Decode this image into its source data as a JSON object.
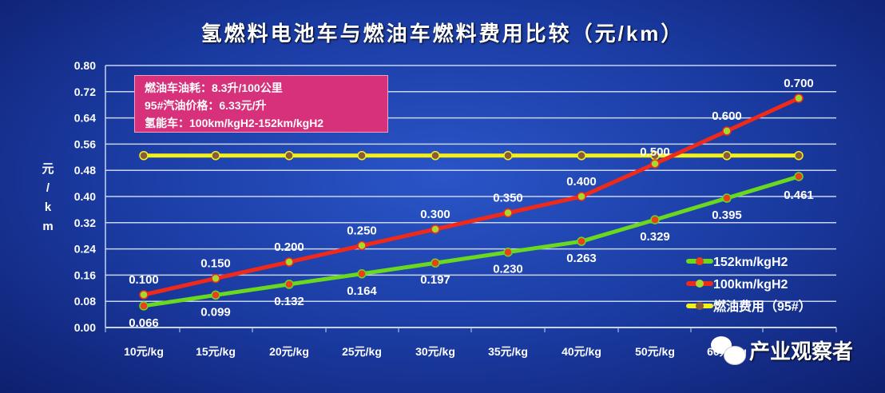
{
  "chart_data": {
    "type": "line",
    "title": "氢燃料电池车与燃油车燃料费用比较（元/km）",
    "ylabel": "元/km",
    "xlabel": "",
    "ylim": [
      0,
      0.8
    ],
    "yticks": [
      "0.00",
      "0.08",
      "0.16",
      "0.24",
      "0.32",
      "0.40",
      "0.48",
      "0.56",
      "0.64",
      "0.72",
      "0.80"
    ],
    "categories": [
      "10元/kg",
      "15元/kg",
      "20元/kg",
      "25元/kg",
      "30元/kg",
      "35元/kg",
      "40元/kg",
      "50元/kg",
      "60元/kg",
      ""
    ],
    "series": [
      {
        "name": "152km/kgH2",
        "color": "#6ad81e",
        "marker": "#e8401a",
        "values": [
          0.066,
          0.099,
          0.132,
          0.164,
          0.197,
          0.23,
          0.263,
          0.329,
          0.395,
          0.461
        ],
        "labels": [
          "0.066",
          "0.099",
          "0.132",
          "0.164",
          "0.197",
          "0.230",
          "0.263",
          "0.329",
          "0.395",
          "0.461"
        ]
      },
      {
        "name": "100km/kgH2",
        "color": "#f02a1a",
        "marker": "#a8d830",
        "values": [
          0.1,
          0.15,
          0.2,
          0.25,
          0.3,
          0.35,
          0.4,
          0.5,
          0.6,
          0.7
        ],
        "labels": [
          "0.100",
          "0.150",
          "0.200",
          "0.250",
          "0.300",
          "0.350",
          "0.400",
          "0.500",
          "0.600",
          "0.700"
        ]
      },
      {
        "name": "燃油费用（95#）",
        "color": "#f4f01a",
        "marker": "#8a5a3a",
        "values": [
          0.525,
          0.525,
          0.525,
          0.525,
          0.525,
          0.525,
          0.525,
          0.525,
          0.525,
          0.525
        ],
        "labels": []
      }
    ],
    "grid": true,
    "legend": "bottom-right",
    "annotation": [
      "燃油车油耗：8.3升/100公里",
      "95#汽油价格：6.33元/升",
      "氢能车：100km/kgH2-152km/kgH2"
    ]
  },
  "watermark": "产业观察者"
}
